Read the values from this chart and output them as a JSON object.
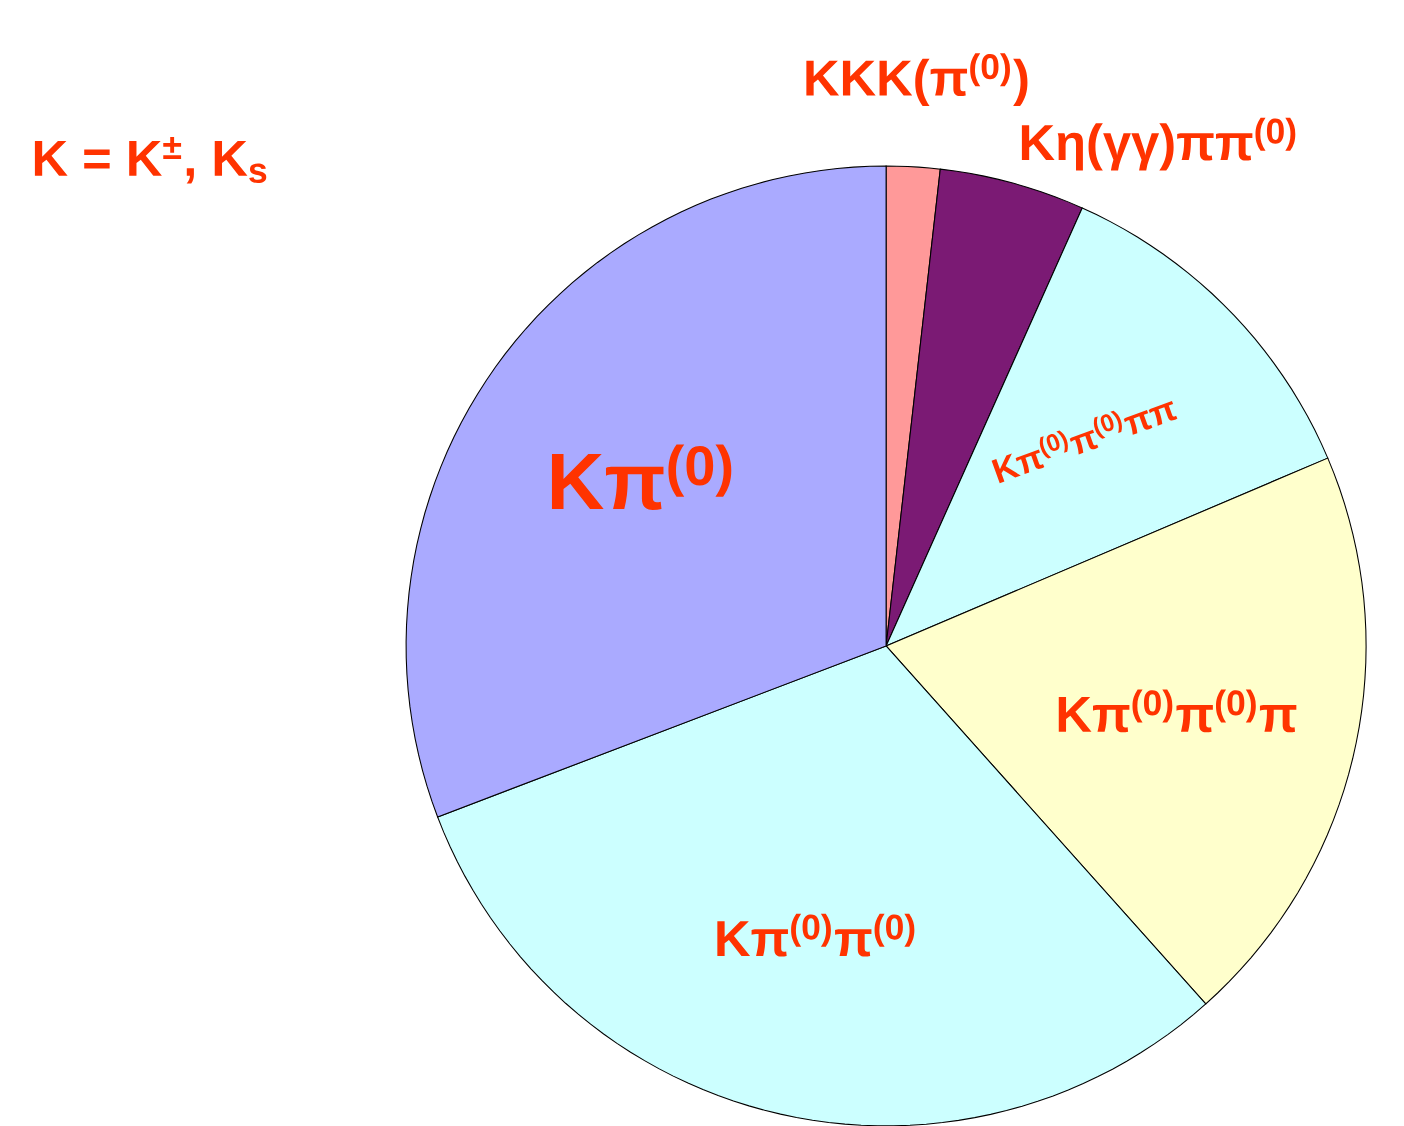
{
  "chart_data": {
    "type": "pie",
    "categories": [
      "KKK(π$^{(0)}$)",
      "Kη(γγ)ππ$^{(0)}$",
      "Kπ$^{(0)}$π$^{(0)}$ππ",
      "Kπ$^{(0)}$π$^{(0)}$π",
      "Kπ$^{(0)}$π$^{(0)}$",
      "Kπ$^{(0)}$"
    ],
    "values": [
      1.8,
      4.9,
      11.9,
      19.8,
      30.8,
      30.8
    ],
    "colors": [
      "#ff9999",
      "#7b1a74",
      "#ccffff",
      "#ffffcc",
      "#ccffff",
      "#aaaaff"
    ],
    "annotations": [
      "K = K$^{±}$, K$_{s}$"
    ]
  }
}
